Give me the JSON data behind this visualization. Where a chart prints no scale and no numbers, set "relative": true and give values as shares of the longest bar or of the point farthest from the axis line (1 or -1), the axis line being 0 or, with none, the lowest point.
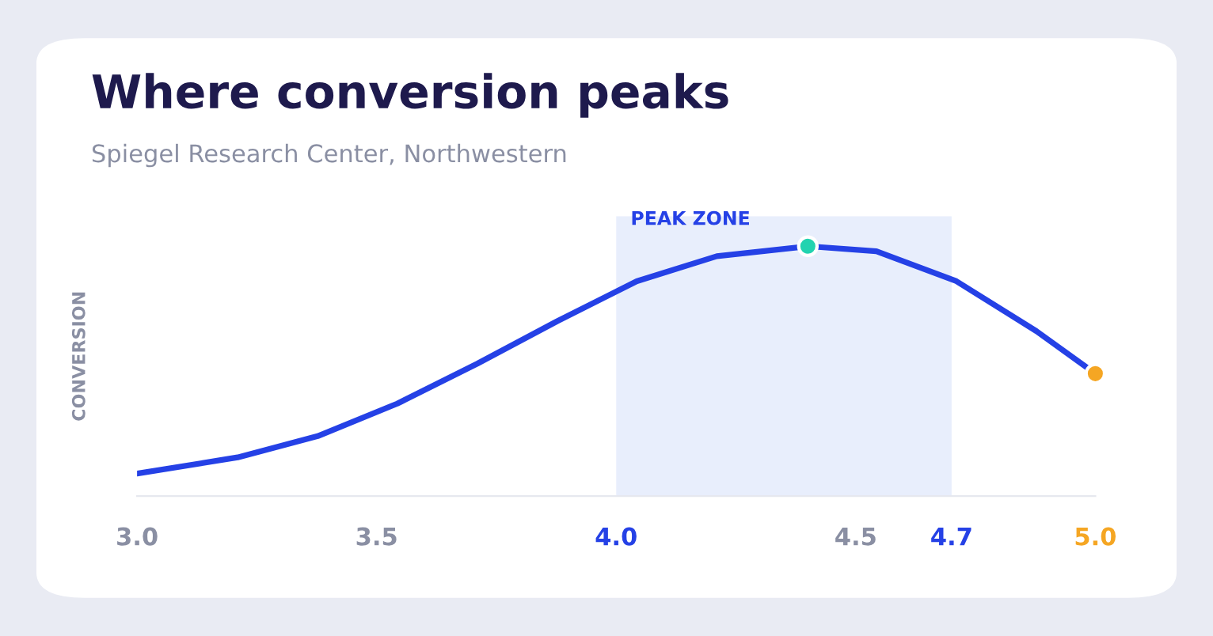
{
  "chart_data": {
    "type": "line",
    "title": "Where conversion peaks",
    "subtitle": "Spiegel Research Center, Northwestern",
    "ylabel": "CONVERSION",
    "relative": true,
    "xlim": [
      3.0,
      5.0
    ],
    "xticks": [
      {
        "value": 3.0,
        "label": "3.0"
      },
      {
        "value": 3.5,
        "label": "3.5"
      },
      {
        "value": 4.0,
        "label": "4.0"
      },
      {
        "value": 4.5,
        "label": "4.5"
      },
      {
        "value": 4.7,
        "label": "4.7"
      },
      {
        "value": 5.0,
        "label": "5.0"
      }
    ],
    "grid": false,
    "legend": false,
    "bands": [
      {
        "axis": "x",
        "from": 4.0,
        "to": 4.7,
        "label": "PEAK ZONE",
        "color": "#e8eefc"
      }
    ],
    "series": [
      {
        "color": "#2541e6",
        "x": [
          3.0,
          3.21,
          3.377,
          3.543,
          3.71,
          3.877,
          4.043,
          4.21,
          4.4,
          4.543,
          4.71,
          4.877,
          5.0
        ],
        "values": [
          0.09,
          0.155,
          0.24,
          0.37,
          0.53,
          0.7,
          0.86,
          0.96,
          1.0,
          0.98,
          0.86,
          0.66,
          0.49
        ]
      },
      {
        "type": "scatter",
        "color": "#22d3b0",
        "x": [
          4.4
        ],
        "values": [
          1.0
        ]
      },
      {
        "type": "scatter",
        "color": "#f5a623",
        "x": [
          5.0
        ],
        "values": [
          0.49
        ]
      }
    ]
  }
}
